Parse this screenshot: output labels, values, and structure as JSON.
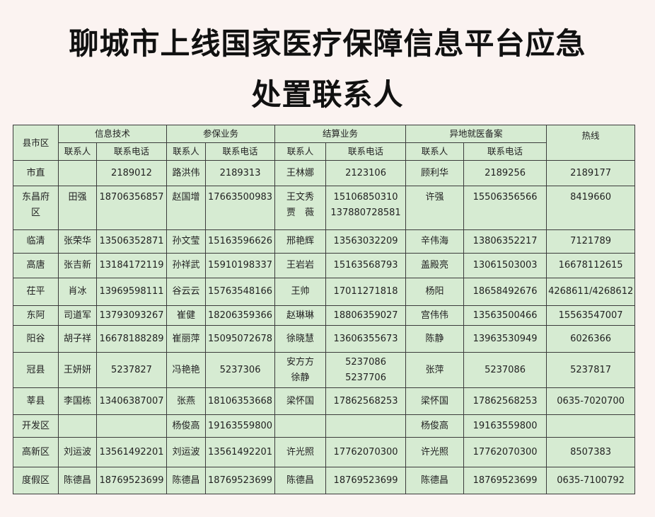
{
  "title_line1": "聊城市上线国家医疗保障信息平台应急",
  "title_line2": "处置联系人",
  "table": {
    "county_header": "县市区",
    "groups": [
      "信息技术",
      "参保业务",
      "结算业务",
      "异地就医备案"
    ],
    "hotline_header": "热线",
    "contact_label": "联系人",
    "phone_label": "联系电话",
    "rows": [
      {
        "county": "市直",
        "cells": [
          "",
          "2189012",
          "路洪伟",
          "2189313",
          "王林娜",
          "2123106",
          "顾利华",
          "2189256"
        ],
        "hotline": "2189177"
      },
      {
        "county": "东昌府\n区",
        "cells": [
          "田强",
          "18706356857",
          "赵国增",
          "17663500983",
          "王文秀\n贾　薇",
          "15106850310\n137880728581",
          "许强",
          "15506356566"
        ],
        "hotline": "8419660"
      },
      {
        "county": "临清",
        "cells": [
          "张荣华",
          "13506352871",
          "孙文莹",
          "15163596626",
          "邢艳辉",
          "13563032209",
          "辛伟海",
          "13806352217"
        ],
        "hotline": "7121789"
      },
      {
        "county": "高唐",
        "cells": [
          "张吉新",
          "13184172119",
          "孙祥武",
          "15910198337",
          "王岩岩",
          "15163568793",
          "盖殿亮",
          "13061503003"
        ],
        "hotline": "16678112615"
      },
      {
        "county": "茌平",
        "cells": [
          "肖冰",
          "13969598111",
          "谷云云",
          "15763548166",
          "王帅",
          "17011271818",
          "杨阳",
          "18658492676"
        ],
        "hotline": "4268611/4268612"
      },
      {
        "county": "东阿",
        "cells": [
          "司道军",
          "13793093267",
          "崔健",
          "18206359366",
          "赵琳琳",
          "18806359027",
          "宫伟伟",
          "13563500466"
        ],
        "hotline": "15563547007"
      },
      {
        "county": "阳谷",
        "cells": [
          "胡子祥",
          "16678188289",
          "崔丽萍",
          "15095072678",
          "徐晓慧",
          "13606355673",
          "陈静",
          "13963530949"
        ],
        "hotline": "6026366"
      },
      {
        "county": "冠县",
        "cells": [
          "王妍妍",
          "5237827",
          "冯艳艳",
          "5237306",
          "安方方\n徐静",
          "5237086\n5237706",
          "张萍",
          "5237086"
        ],
        "hotline": "5237817"
      },
      {
        "county": "莘县",
        "cells": [
          "李国栋",
          "13406387007",
          "张燕",
          "18106353668",
          "梁怀国",
          "17862568253",
          "梁怀国",
          "17862568253"
        ],
        "hotline": "0635-7020700"
      },
      {
        "county": "开发区",
        "cells": [
          "",
          "",
          "杨俊高",
          "19163559800",
          "",
          "",
          "杨俊高",
          "19163559800"
        ],
        "hotline": ""
      },
      {
        "county": "高新区",
        "cells": [
          "刘运波",
          "13561492201",
          "刘运波",
          "13561492201",
          "许光照",
          "17762070300",
          "许光照",
          "17762070300"
        ],
        "hotline": "8507383"
      },
      {
        "county": "度假区",
        "cells": [
          "陈德昌",
          "18769523699",
          "陈德昌",
          "18769523699",
          "陈德昌",
          "18769523699",
          "陈德昌",
          "18769523699"
        ],
        "hotline": "0635-7100792"
      }
    ]
  },
  "colors": {
    "page_bg": "#fbf3f1",
    "table_bg": "#d6ebd2",
    "border": "#3b3b3b"
  }
}
